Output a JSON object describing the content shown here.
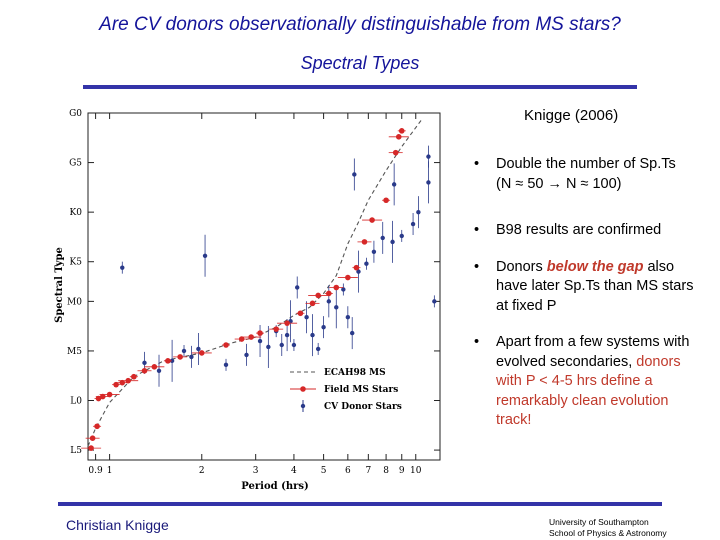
{
  "slide": {
    "title": "Are CV donors observationally distinguishable from MS stars?",
    "subtitle": "Spectral Types",
    "citation": "Knigge (2006)",
    "author": "Christian Knigge",
    "institution_line1": "University of Southampton",
    "institution_line2": "School of Physics & Astronomy",
    "colors": {
      "title": "#14149a",
      "rule": "#3333a8",
      "cv_donor": "#2a3a8a",
      "field_ms": "#d62828"
    }
  },
  "bullets": {
    "marker": "•",
    "b1": "Double the number of Sp.Ts (N ≈ 50 → N ≈ 100)",
    "b2": "B98 results are confirmed",
    "b3_pre": "Donors ",
    "b3_em": "below the gap",
    "b3_post": " also have later Sp.Ts than MS stars at fixed P",
    "b4_pre": "Apart from a few systems with evolved secondaries, ",
    "b4_red": "donors with P < 4-5 hrs define a remarkably clean evolution track!"
  },
  "chart_data": {
    "type": "scatter",
    "xlabel": "Period (hrs)",
    "ylabel": "Spectral Type",
    "x_scale": "log",
    "xlim": [
      0.85,
      12
    ],
    "x_ticks": [
      0.9,
      1,
      2,
      3,
      4,
      5,
      6,
      7,
      8,
      9,
      10
    ],
    "x_tick_labels": [
      "0.9",
      "1",
      "2",
      "3",
      "4",
      "5",
      "6",
      "7",
      "8",
      "9",
      "10"
    ],
    "ylim": [
      0,
      17.5
    ],
    "y_ticks": [
      0,
      2.5,
      5,
      7.5,
      10,
      12.5,
      15
    ],
    "y_tick_labels": [
      "G0",
      "G5",
      "K0",
      "K5",
      "M0",
      "M5",
      "L0",
      "L5"
    ],
    "y_tick_values": [
      0,
      2.5,
      5,
      7.5,
      9.5,
      12,
      14.5,
      17
    ],
    "legend": [
      "ECAH98 MS",
      "Field MS Stars",
      "CV Donor Stars"
    ],
    "legend_position": "bottom-right",
    "series": [
      {
        "name": "ECAH98 MS",
        "style": "dashed",
        "points": [
          [
            0.85,
            16.8
          ],
          [
            0.9,
            15.9
          ],
          [
            1.0,
            14.6
          ],
          [
            1.2,
            13.3
          ],
          [
            1.5,
            12.5
          ],
          [
            2.0,
            12.1
          ],
          [
            2.5,
            11.6
          ],
          [
            3.0,
            11.3
          ],
          [
            3.5,
            10.8
          ],
          [
            4.0,
            10.2
          ],
          [
            4.5,
            9.8
          ],
          [
            5.0,
            9.1
          ],
          [
            5.5,
            8.2
          ],
          [
            6.0,
            6.6
          ],
          [
            6.5,
            5.5
          ],
          [
            7.0,
            4.4
          ],
          [
            8.0,
            2.9
          ],
          [
            9.0,
            1.7
          ],
          [
            10.5,
            0.3
          ]
        ]
      },
      {
        "name": "Field MS Stars",
        "points": [
          [
            0.92,
            14.4
          ],
          [
            0.95,
            14.3
          ],
          [
            1.0,
            14.2
          ],
          [
            1.05,
            13.7
          ],
          [
            1.1,
            13.6
          ],
          [
            1.15,
            13.5
          ],
          [
            1.2,
            13.3
          ],
          [
            1.3,
            13.0
          ],
          [
            1.4,
            12.8
          ],
          [
            1.55,
            12.5
          ],
          [
            1.7,
            12.3
          ],
          [
            2.0,
            12.1
          ],
          [
            2.4,
            11.7
          ],
          [
            2.7,
            11.4
          ],
          [
            2.9,
            11.3
          ],
          [
            3.1,
            11.1
          ],
          [
            3.5,
            10.9
          ],
          [
            3.8,
            10.6
          ],
          [
            4.2,
            10.1
          ],
          [
            4.6,
            9.6
          ],
          [
            4.8,
            9.2
          ],
          [
            5.2,
            9.1
          ],
          [
            5.5,
            8.8
          ],
          [
            6.0,
            8.3
          ],
          [
            6.4,
            7.8
          ],
          [
            6.8,
            6.5
          ],
          [
            7.2,
            5.4
          ],
          [
            8.0,
            4.4
          ],
          [
            8.6,
            2.0
          ],
          [
            8.8,
            1.2
          ],
          [
            9.0,
            0.9
          ],
          [
            0.88,
            16.4
          ],
          [
            0.87,
            16.9
          ],
          [
            0.91,
            15.8
          ]
        ]
      },
      {
        "name": "CV Donor Stars",
        "points": [
          [
            1.1,
            7.8
          ],
          [
            1.3,
            12.6
          ],
          [
            1.45,
            13.0
          ],
          [
            1.6,
            12.5
          ],
          [
            1.75,
            12.0
          ],
          [
            1.85,
            12.3
          ],
          [
            1.95,
            11.9
          ],
          [
            2.05,
            7.2
          ],
          [
            2.4,
            12.7
          ],
          [
            2.8,
            12.2
          ],
          [
            3.1,
            11.5
          ],
          [
            3.3,
            11.8
          ],
          [
            3.5,
            11.0
          ],
          [
            3.65,
            11.7
          ],
          [
            3.8,
            11.2
          ],
          [
            3.9,
            10.5
          ],
          [
            4.0,
            11.7
          ],
          [
            4.1,
            8.8
          ],
          [
            4.4,
            10.3
          ],
          [
            4.6,
            11.2
          ],
          [
            4.8,
            11.9
          ],
          [
            5.0,
            10.8
          ],
          [
            5.2,
            9.5
          ],
          [
            5.5,
            9.8
          ],
          [
            5.8,
            8.9
          ],
          [
            6.0,
            10.3
          ],
          [
            6.2,
            11.1
          ],
          [
            6.5,
            8.0
          ],
          [
            6.9,
            7.6
          ],
          [
            7.3,
            7.0
          ],
          [
            7.8,
            6.3
          ],
          [
            8.4,
            6.5
          ],
          [
            9.0,
            6.2
          ],
          [
            9.8,
            5.6
          ],
          [
            10.2,
            5.0
          ],
          [
            11.0,
            3.5
          ],
          [
            11.5,
            9.5
          ],
          [
            11.0,
            2.2
          ],
          [
            6.3,
            3.1
          ],
          [
            8.5,
            3.6
          ]
        ]
      }
    ]
  }
}
